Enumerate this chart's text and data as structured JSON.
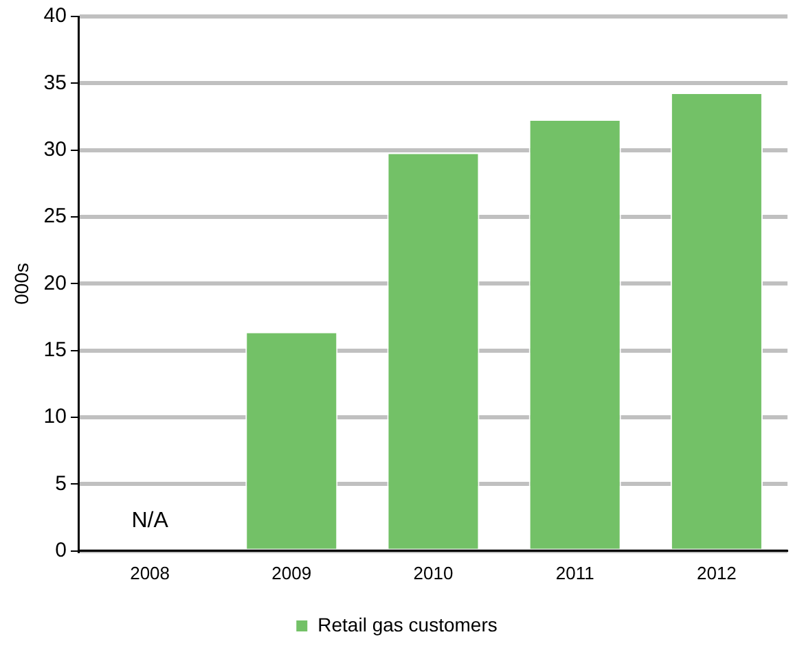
{
  "chart_data": {
    "type": "bar",
    "ylabel": "000s",
    "categories": [
      "2008",
      "2009",
      "2010",
      "2011",
      "2012"
    ],
    "series": [
      {
        "name": "Retail gas customers",
        "color": "#73c167",
        "values": [
          null,
          16.4,
          29.8,
          32.3,
          34.3
        ]
      }
    ],
    "ylim": [
      0,
      40
    ],
    "yticks": [
      0,
      5,
      10,
      15,
      20,
      25,
      30,
      35,
      40
    ],
    "grid": "y",
    "legend": "bottom",
    "annotations": [
      "N/A"
    ]
  }
}
